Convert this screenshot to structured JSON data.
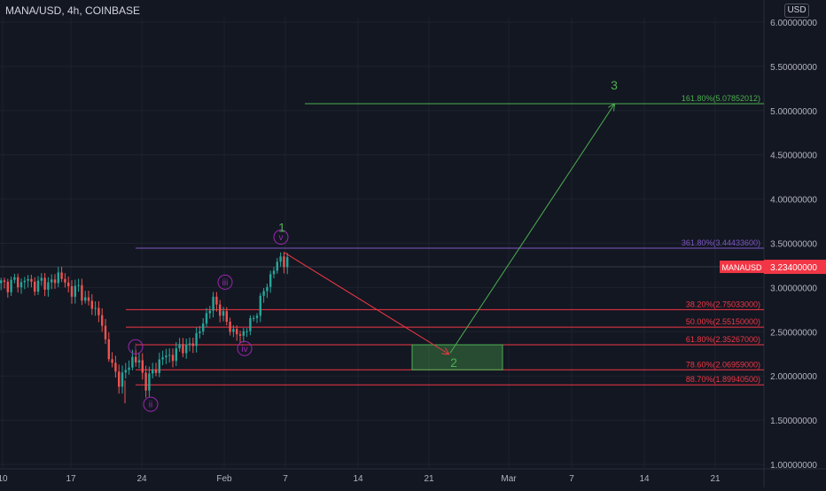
{
  "header": {
    "title": "MANA/USD, 4h, COINBASE",
    "currency": "USD"
  },
  "colors": {
    "background": "#131722",
    "grid": "#1e222d",
    "text": "#b2b5be",
    "up": "#26a69a",
    "down": "#ef5350",
    "fib": "#f23645",
    "purple": "#9c27b0",
    "projection": "#4caf50",
    "price_tag": "#f23645"
  },
  "chart_data": {
    "type": "candlestick",
    "title": "MANA/USD, 4h, COINBASE",
    "ylim": [
      0.9,
      6.15
    ],
    "y_ticks": [
      {
        "value": 6.0,
        "label": "6.00000000"
      },
      {
        "value": 5.5,
        "label": "5.50000000"
      },
      {
        "value": 5.0,
        "label": "5.00000000"
      },
      {
        "value": 4.5,
        "label": "4.50000000"
      },
      {
        "value": 4.0,
        "label": "4.00000000"
      },
      {
        "value": 3.5,
        "label": "3.50000000"
      },
      {
        "value": 3.0,
        "label": "3.00000000"
      },
      {
        "value": 2.5,
        "label": "2.50000000"
      },
      {
        "value": 2.0,
        "label": "2.00000000"
      },
      {
        "value": 1.5,
        "label": "1.50000000"
      },
      {
        "value": 1.0,
        "label": "1.00000000"
      }
    ],
    "x_ticks": [
      "10",
      "17",
      "24",
      "Feb",
      "7",
      "14",
      "21",
      "Mar",
      "7",
      "14",
      "21"
    ],
    "current_price": {
      "label": "MANAUSD",
      "value": "3.23400000",
      "level": 3.234
    },
    "candles_path": [
      [
        3.05,
        0
      ],
      [
        3.02,
        2
      ],
      [
        3.08,
        4
      ],
      [
        3.04,
        6
      ],
      [
        3.1,
        8
      ],
      [
        3.0,
        10
      ],
      [
        3.08,
        12
      ],
      [
        3.02,
        14
      ],
      [
        3.1,
        16
      ],
      [
        3.15,
        17
      ],
      [
        3.05,
        19
      ],
      [
        2.95,
        21
      ],
      [
        3.0,
        23
      ],
      [
        2.85,
        25
      ],
      [
        2.8,
        27
      ],
      [
        2.7,
        29
      ],
      [
        2.4,
        31
      ],
      [
        2.1,
        33
      ],
      [
        1.95,
        35
      ],
      [
        2.05,
        37
      ],
      [
        2.2,
        39
      ],
      [
        2.15,
        41
      ],
      [
        1.9,
        43
      ],
      [
        2.05,
        45
      ],
      [
        2.15,
        47
      ],
      [
        2.25,
        49
      ],
      [
        2.2,
        51
      ],
      [
        2.35,
        53
      ],
      [
        2.3,
        55
      ],
      [
        2.4,
        57
      ],
      [
        2.5,
        59
      ],
      [
        2.7,
        61
      ],
      [
        2.85,
        63
      ],
      [
        2.75,
        65
      ],
      [
        2.6,
        67
      ],
      [
        2.5,
        69
      ],
      [
        2.45,
        71
      ],
      [
        2.55,
        73
      ],
      [
        2.65,
        75
      ],
      [
        2.85,
        77
      ],
      [
        3.05,
        79
      ],
      [
        3.2,
        81
      ],
      [
        3.35,
        83
      ],
      [
        3.28,
        84
      ]
    ],
    "fib_levels": [
      {
        "label": "161.80%(5.07852012)",
        "value": 5.07852012,
        "color": "green"
      },
      {
        "label": "361.80%(3.44433600)",
        "value": 3.444336,
        "color": "purple"
      },
      {
        "label": "38.20%(2.75033000)",
        "value": 2.75033,
        "color": "red"
      },
      {
        "label": "50.00%(2.55150000)",
        "value": 2.5515,
        "color": "red"
      },
      {
        "label": "61.80%(2.35267000)",
        "value": 2.35267,
        "color": "red"
      },
      {
        "label": "78.60%(2.06959000)",
        "value": 2.06959,
        "color": "red"
      },
      {
        "label": "88.70%(1.89940500)",
        "value": 1.899405,
        "color": "red"
      }
    ],
    "wave_labels": [
      {
        "label": "i",
        "price": 2.33
      },
      {
        "label": "ii",
        "price": 1.68
      },
      {
        "label": "iii",
        "price": 3.06
      },
      {
        "label": "iv",
        "price": 2.31
      },
      {
        "label": "v",
        "price": 3.57
      }
    ],
    "major_labels": [
      {
        "label": "1",
        "price": 3.68
      },
      {
        "label": "2",
        "price": 2.15
      },
      {
        "label": "3",
        "price": 5.29
      }
    ],
    "target_box": {
      "top": 2.35267,
      "bottom": 2.06959
    },
    "arrows": [
      {
        "from_price": 3.4,
        "to_price": 2.25
      },
      {
        "from_price": 2.26,
        "to_price": 5.07
      }
    ]
  }
}
